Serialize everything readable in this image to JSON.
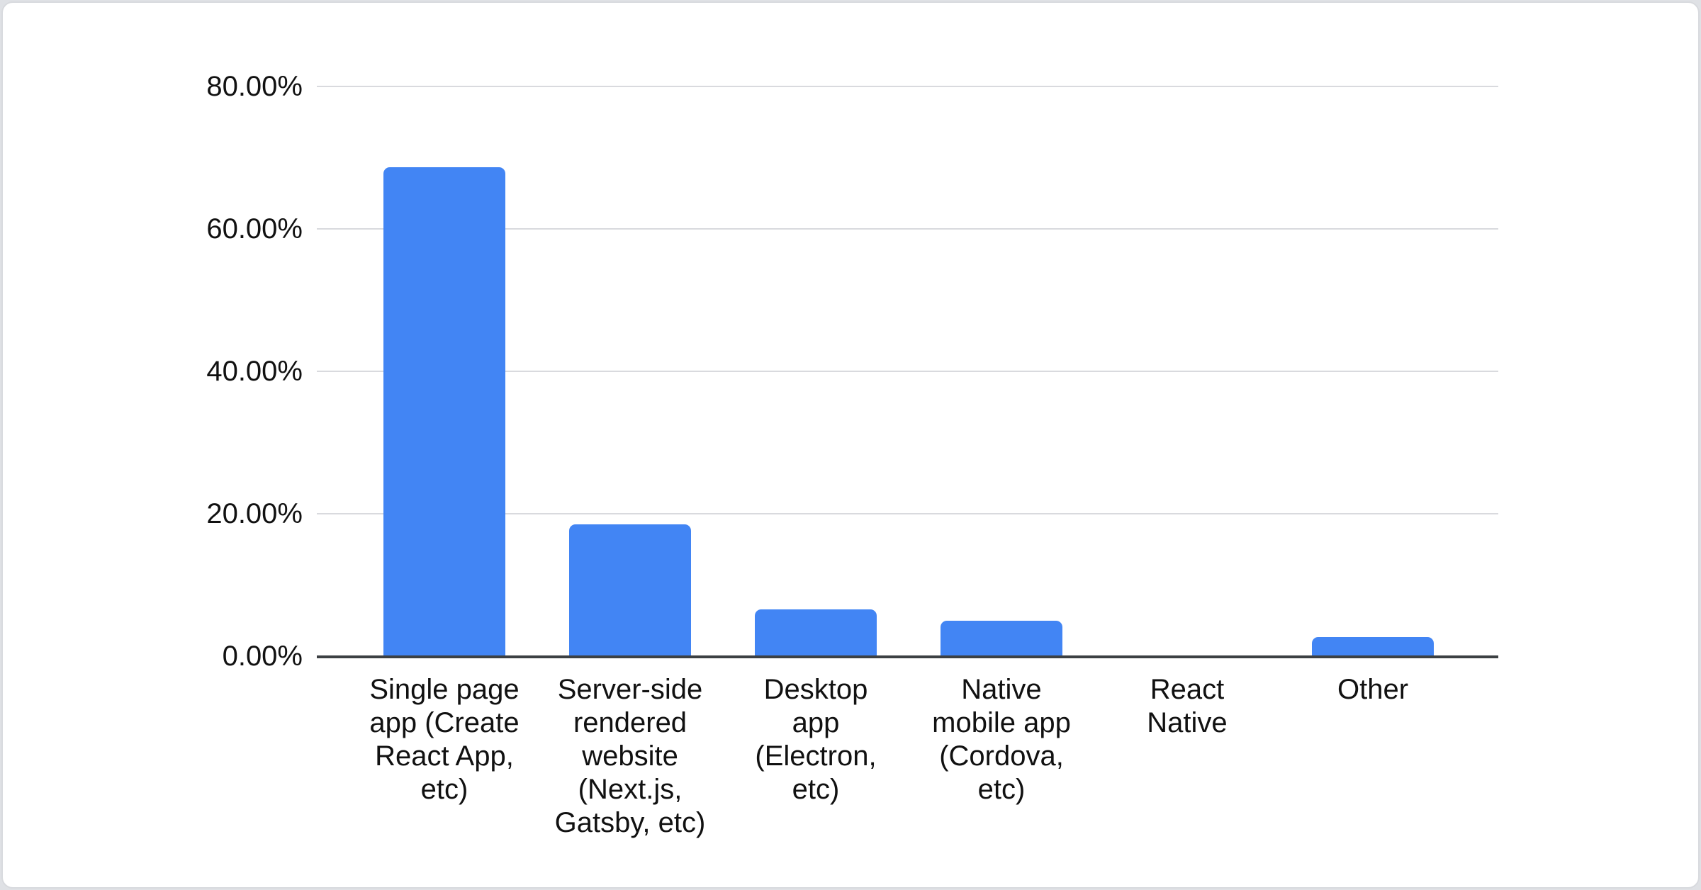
{
  "chart_data": {
    "type": "bar",
    "title": "",
    "categories": [
      "Single page app (Create React App, etc)",
      "Server-side rendered website (Next.js, Gatsby, etc)",
      "Desktop app (Electron, etc)",
      "Native mobile app (Cordova, etc)",
      "React Native",
      "Other"
    ],
    "category_lines": [
      "Single page\napp (Create\nReact App,\netc)",
      "Server-side\nrendered\nwebsite\n(Next.js,\nGatsby, etc)",
      "Desktop\napp\n(Electron,\netc)",
      "Native\nmobile app\n(Cordova,\netc)",
      "React\nNative",
      "Other"
    ],
    "values": [
      68.6,
      18.4,
      6.5,
      4.9,
      0,
      2.6
    ],
    "xlabel": "",
    "ylabel": "",
    "ylim": [
      0,
      80
    ],
    "yticks": [
      {
        "value": 0,
        "label": "0.00%"
      },
      {
        "value": 20,
        "label": "20.00%"
      },
      {
        "value": 40,
        "label": "40.00%"
      },
      {
        "value": 60,
        "label": "60.00%"
      },
      {
        "value": 80,
        "label": "80.00%"
      }
    ],
    "grid": true,
    "legend_position": "none",
    "bar_color": "#4285f4",
    "gridline_color": "#d9dade",
    "axis_line_color": "#3c4043",
    "text_color": "#111111"
  }
}
